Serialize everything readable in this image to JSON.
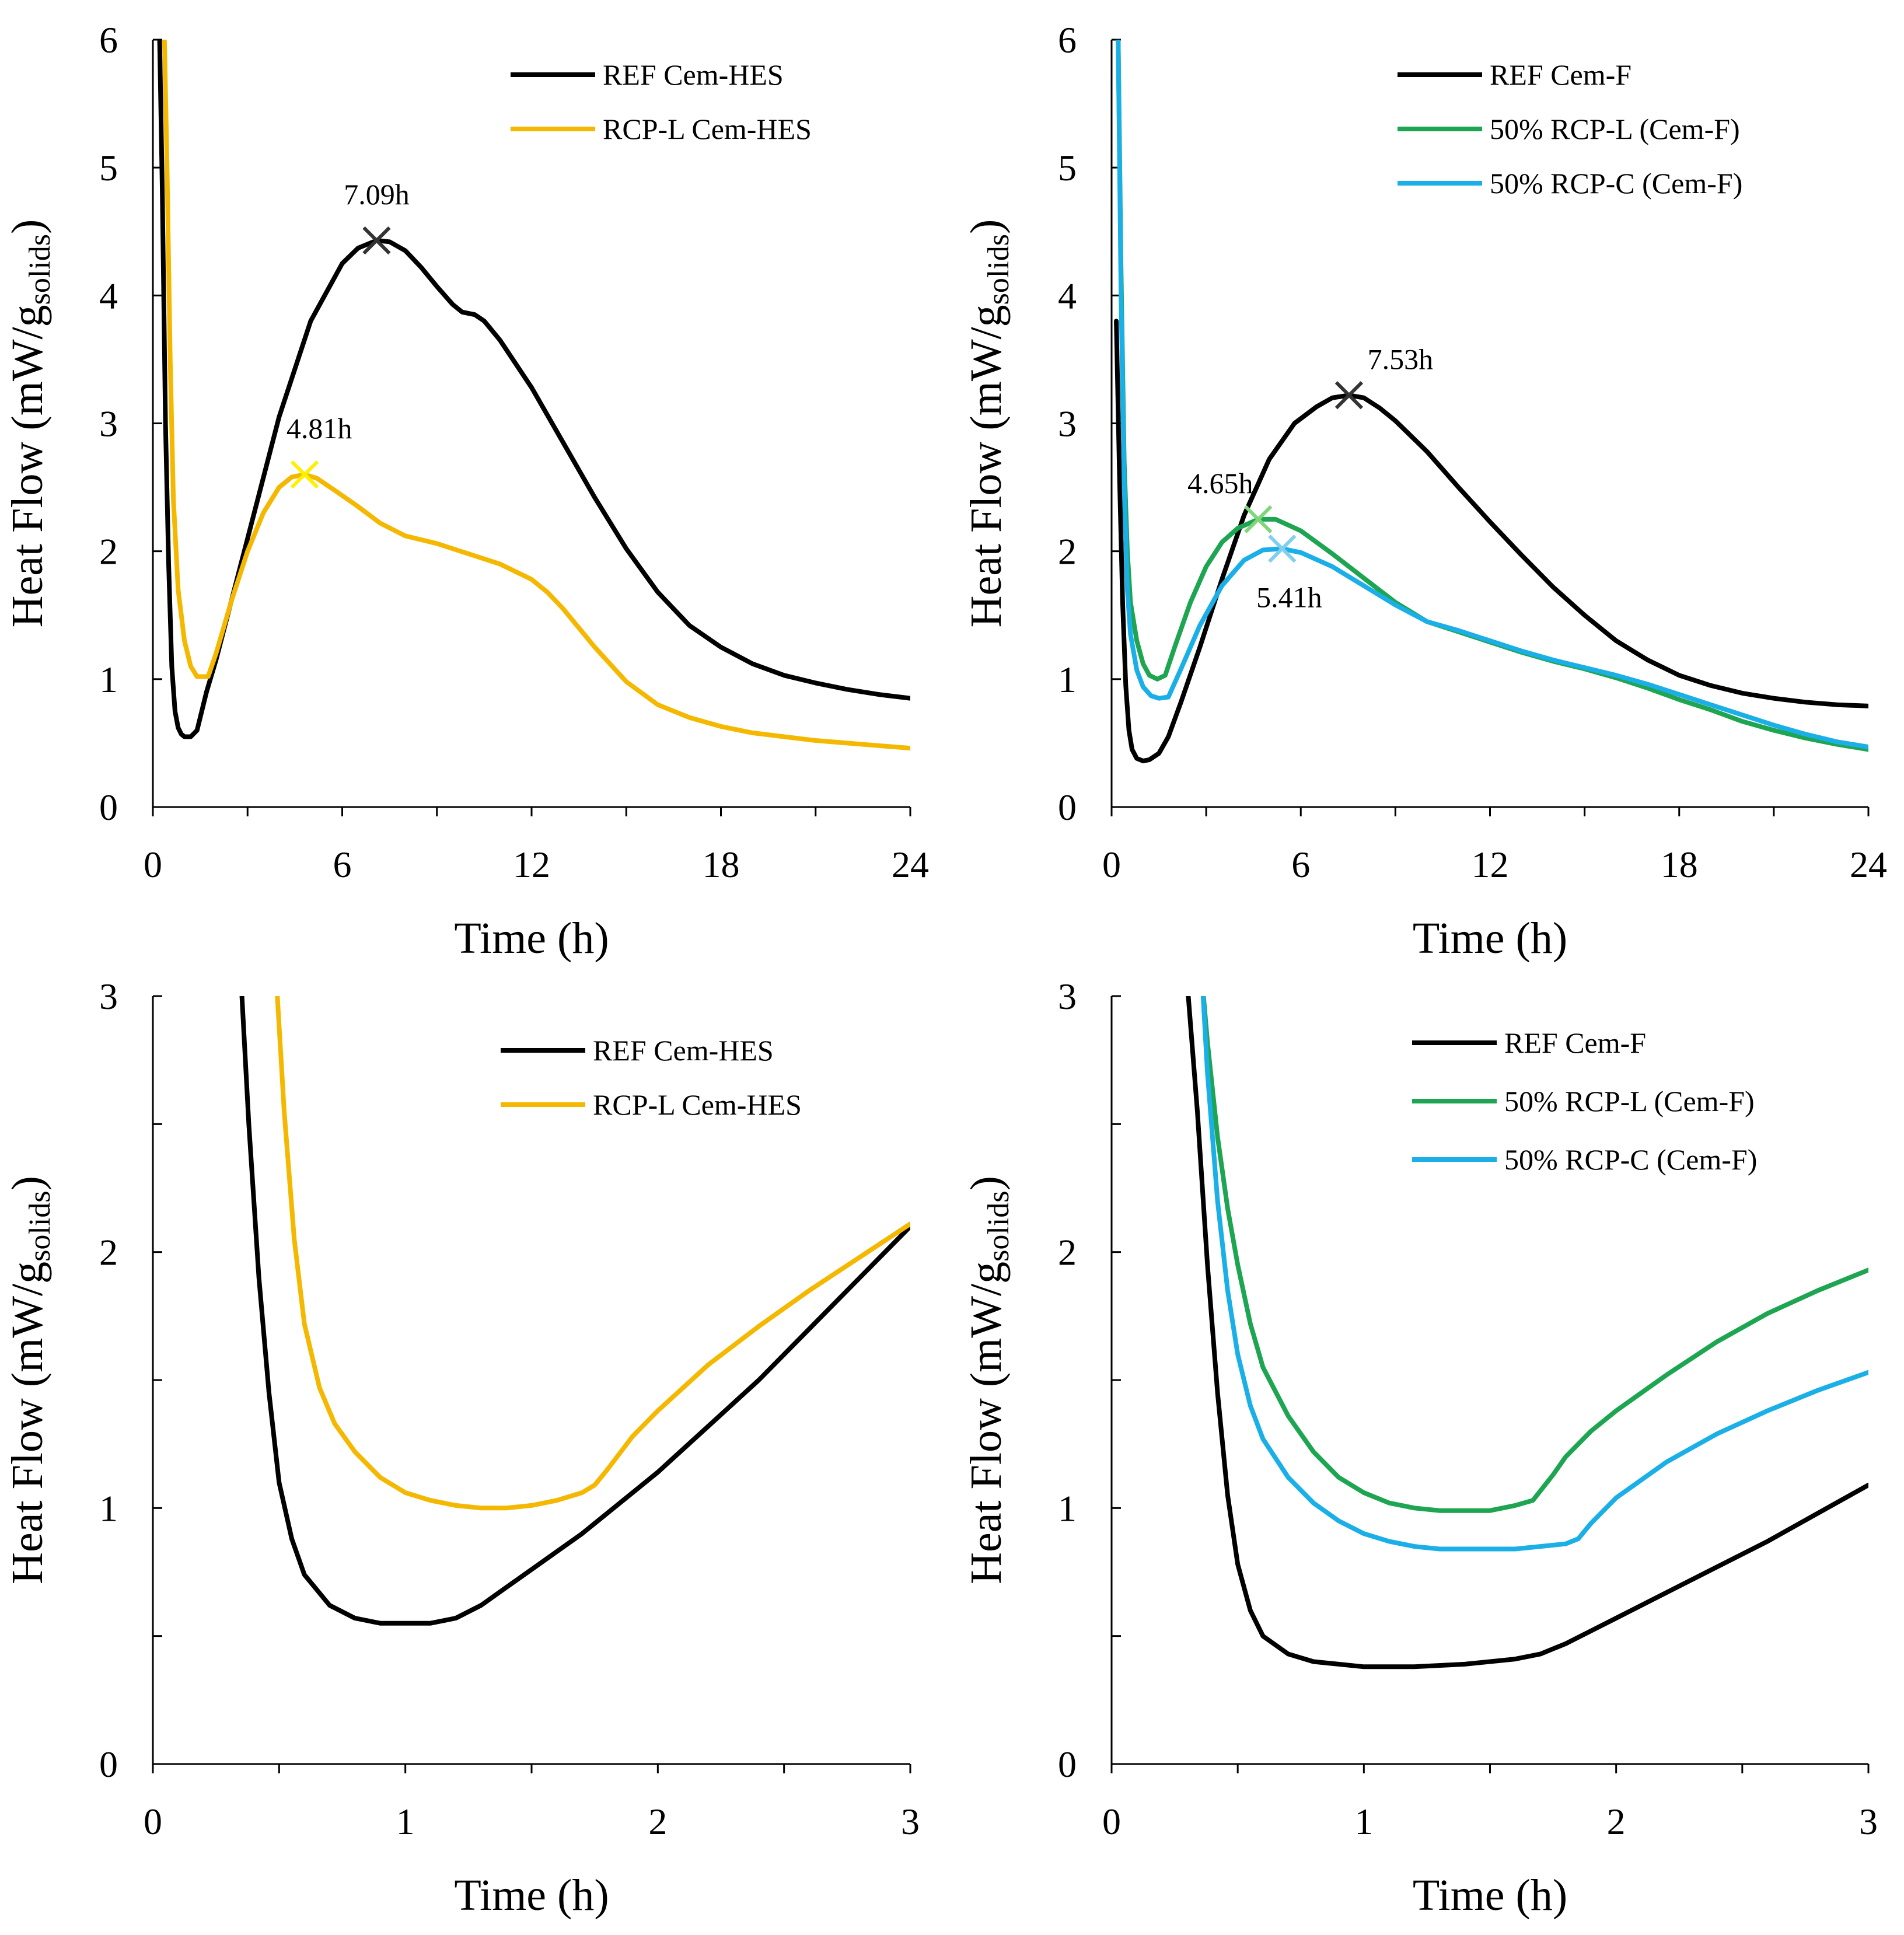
{
  "chart_data": [
    {
      "type": "line",
      "panel": "top-left",
      "title": "",
      "xlabel": "Time (h)",
      "ylabel_main": "Heat Flow (mW/g",
      "ylabel_sub": "solids",
      "ylabel_close": ")",
      "xlim": [
        0,
        24
      ],
      "ylim": [
        0,
        6
      ],
      "xticks": [
        0,
        6,
        12,
        18,
        24
      ],
      "xminor": [
        3,
        9,
        15,
        21
      ],
      "yticks": [
        0,
        1,
        2,
        3,
        4,
        5,
        6
      ],
      "legend_position": "top-right",
      "series": [
        {
          "name": "REF Cem-HES",
          "color": "#000000",
          "x": [
            0.2,
            0.3,
            0.4,
            0.5,
            0.6,
            0.7,
            0.8,
            0.9,
            1.0,
            1.2,
            1.4,
            1.7,
            2,
            3,
            4,
            5,
            6,
            6.5,
            7.09,
            7.5,
            8,
            8.5,
            9,
            9.5,
            9.8,
            10.2,
            10.5,
            11,
            12,
            13,
            14,
            15,
            16,
            17,
            18,
            19,
            20,
            21,
            22,
            23,
            24
          ],
          "y": [
            6.2,
            4.8,
            3.0,
            1.9,
            1.1,
            0.75,
            0.62,
            0.57,
            0.55,
            0.55,
            0.6,
            0.9,
            1.15,
            2.1,
            3.05,
            3.8,
            4.25,
            4.37,
            4.43,
            4.42,
            4.35,
            4.22,
            4.07,
            3.93,
            3.87,
            3.85,
            3.8,
            3.65,
            3.28,
            2.85,
            2.42,
            2.02,
            1.68,
            1.42,
            1.25,
            1.12,
            1.03,
            0.97,
            0.92,
            0.88,
            0.85
          ]
        },
        {
          "name": "RCP-L Cem-HES",
          "color": "#F5B800",
          "x": [
            0.35,
            0.45,
            0.55,
            0.65,
            0.8,
            1.0,
            1.2,
            1.4,
            1.75,
            2,
            2.5,
            3,
            3.5,
            4,
            4.4,
            4.81,
            5.2,
            5.8,
            6.5,
            7.2,
            8,
            9,
            10,
            11,
            12,
            12.5,
            13,
            14,
            15,
            16,
            17,
            18,
            19,
            20,
            21,
            22,
            23,
            24
          ],
          "y": [
            6.2,
            5.0,
            3.5,
            2.4,
            1.7,
            1.3,
            1.1,
            1.02,
            1.02,
            1.2,
            1.62,
            2.0,
            2.3,
            2.5,
            2.58,
            2.6,
            2.57,
            2.47,
            2.35,
            2.22,
            2.12,
            2.06,
            1.98,
            1.9,
            1.78,
            1.68,
            1.55,
            1.25,
            0.98,
            0.8,
            0.7,
            0.63,
            0.58,
            0.55,
            0.52,
            0.5,
            0.48,
            0.46
          ]
        }
      ],
      "markers": [
        {
          "series": 0,
          "x": 7.09,
          "y": 4.43,
          "label": "7.09h",
          "color": "#333333",
          "label_dx": 0,
          "label_dy": -62,
          "anchor": "middle"
        },
        {
          "series": 1,
          "x": 4.81,
          "y": 2.6,
          "label": "4.81h",
          "color": "#FFF000",
          "label_dx": 25,
          "label_dy": -62,
          "anchor": "middle"
        }
      ]
    },
    {
      "type": "line",
      "panel": "top-right",
      "title": "",
      "xlabel": "Time (h)",
      "ylabel_main": "Heat Flow (mW/g",
      "ylabel_sub": "solids",
      "ylabel_close": ")",
      "xlim": [
        0,
        24
      ],
      "ylim": [
        0,
        6
      ],
      "xticks": [
        0,
        6,
        12,
        18,
        24
      ],
      "xminor": [
        3,
        9,
        15,
        21
      ],
      "yticks": [
        0,
        1,
        2,
        3,
        4,
        5,
        6
      ],
      "legend_position": "top-right",
      "series": [
        {
          "name": "REF Cem-F",
          "color": "#000000",
          "x": [
            0.15,
            0.25,
            0.35,
            0.45,
            0.55,
            0.65,
            0.8,
            1.0,
            1.2,
            1.5,
            1.8,
            2.2,
            2.8,
            3.5,
            4.2,
            5,
            5.8,
            6.5,
            7,
            7.53,
            8,
            8.5,
            9,
            10,
            11,
            12,
            13,
            14,
            15,
            16,
            17,
            18,
            19,
            20,
            21,
            22,
            23,
            24
          ],
          "y": [
            3.8,
            2.6,
            1.6,
            0.95,
            0.6,
            0.45,
            0.38,
            0.36,
            0.37,
            0.42,
            0.55,
            0.82,
            1.25,
            1.78,
            2.28,
            2.72,
            3.0,
            3.13,
            3.2,
            3.22,
            3.2,
            3.12,
            3.02,
            2.78,
            2.5,
            2.23,
            1.97,
            1.72,
            1.5,
            1.3,
            1.15,
            1.03,
            0.95,
            0.89,
            0.85,
            0.82,
            0.8,
            0.79
          ]
        },
        {
          "name": "50% RCP-L (Cem-F)",
          "color": "#1DA552",
          "x": [
            0.2,
            0.3,
            0.4,
            0.5,
            0.6,
            0.8,
            1.0,
            1.2,
            1.45,
            1.7,
            2,
            2.5,
            3,
            3.5,
            4,
            4.65,
            5.2,
            6,
            7,
            8,
            9,
            10,
            11,
            12,
            13,
            14,
            15,
            16,
            17,
            18,
            19,
            20,
            21,
            22,
            23,
            24
          ],
          "y": [
            6.2,
            4.2,
            2.7,
            2.0,
            1.6,
            1.3,
            1.12,
            1.03,
            1.0,
            1.03,
            1.25,
            1.6,
            1.88,
            2.07,
            2.18,
            2.25,
            2.25,
            2.16,
            1.98,
            1.79,
            1.6,
            1.45,
            1.37,
            1.29,
            1.21,
            1.14,
            1.08,
            1.01,
            0.93,
            0.84,
            0.76,
            0.67,
            0.6,
            0.54,
            0.49,
            0.45
          ]
        },
        {
          "name": "50% RCP-C (Cem-F)",
          "color": "#1AAFE6",
          "x": [
            0.2,
            0.3,
            0.4,
            0.5,
            0.6,
            0.8,
            1.0,
            1.25,
            1.5,
            1.8,
            2.2,
            2.8,
            3.5,
            4.2,
            4.8,
            5.41,
            6,
            7,
            8,
            9,
            10,
            11,
            12,
            13,
            14,
            15,
            16,
            17,
            18,
            19,
            20,
            21,
            22,
            23,
            24
          ],
          "y": [
            6.2,
            4.0,
            2.5,
            1.7,
            1.35,
            1.07,
            0.94,
            0.87,
            0.85,
            0.86,
            1.08,
            1.42,
            1.73,
            1.93,
            2.01,
            2.02,
            1.99,
            1.88,
            1.73,
            1.58,
            1.45,
            1.38,
            1.3,
            1.22,
            1.15,
            1.09,
            1.03,
            0.96,
            0.88,
            0.8,
            0.72,
            0.64,
            0.57,
            0.51,
            0.47
          ]
        }
      ],
      "markers": [
        {
          "series": 0,
          "x": 7.53,
          "y": 3.22,
          "label": "7.53h",
          "color": "#333333",
          "label_dx": 88,
          "label_dy": -45,
          "anchor": "middle"
        },
        {
          "series": 1,
          "x": 4.65,
          "y": 2.25,
          "label": "4.65h",
          "color": "#7FD67A",
          "label_dx": -65,
          "label_dy": -45,
          "anchor": "middle"
        },
        {
          "series": 2,
          "x": 5.41,
          "y": 2.02,
          "label": "5.41h",
          "color": "#7FCFF0",
          "label_dx": 12,
          "label_dy": 100,
          "anchor": "middle"
        }
      ]
    },
    {
      "type": "line",
      "panel": "bottom-left",
      "title": "",
      "xlabel": "Time (h)",
      "ylabel_main": "Heat Flow (mW/g",
      "ylabel_sub": "solids",
      "ylabel_close": ")",
      "xlim": [
        0,
        3
      ],
      "ylim": [
        0,
        3
      ],
      "xticks": [
        0,
        1,
        2,
        3
      ],
      "xminor": [
        0.5,
        1.5,
        2.5
      ],
      "yticks": [
        0,
        1,
        2,
        3
      ],
      "yminor": [
        0.5,
        1.5,
        2.5
      ],
      "legend_position": "top-right",
      "series": [
        {
          "name": "REF Cem-HES",
          "color": "#000000",
          "x": [
            0.35,
            0.38,
            0.42,
            0.46,
            0.5,
            0.55,
            0.6,
            0.7,
            0.8,
            0.9,
            1.0,
            1.1,
            1.2,
            1.3,
            1.4,
            1.5,
            1.6,
            1.7,
            1.8,
            1.9,
            2.0,
            2.2,
            2.4,
            2.6,
            2.8,
            3.0
          ],
          "y": [
            3.05,
            2.5,
            1.9,
            1.45,
            1.1,
            0.88,
            0.74,
            0.62,
            0.57,
            0.55,
            0.55,
            0.55,
            0.57,
            0.62,
            0.69,
            0.76,
            0.83,
            0.9,
            0.98,
            1.06,
            1.14,
            1.32,
            1.5,
            1.7,
            1.9,
            2.1
          ]
        },
        {
          "name": "RCP-L Cem-HES",
          "color": "#F5B800",
          "x": [
            0.49,
            0.52,
            0.56,
            0.6,
            0.66,
            0.72,
            0.8,
            0.9,
            1.0,
            1.1,
            1.2,
            1.3,
            1.4,
            1.5,
            1.6,
            1.7,
            1.75,
            1.8,
            1.9,
            2.0,
            2.2,
            2.4,
            2.6,
            2.8,
            3.0
          ],
          "y": [
            3.05,
            2.55,
            2.05,
            1.72,
            1.47,
            1.33,
            1.22,
            1.12,
            1.06,
            1.03,
            1.01,
            1.0,
            1.0,
            1.01,
            1.03,
            1.06,
            1.09,
            1.15,
            1.28,
            1.38,
            1.56,
            1.71,
            1.85,
            1.98,
            2.11
          ]
        }
      ],
      "markers": []
    },
    {
      "type": "line",
      "panel": "bottom-right",
      "title": "",
      "xlabel": "Time (h)",
      "ylabel_main": "Heat Flow (mW/g",
      "ylabel_sub": "solids",
      "ylabel_close": ")",
      "xlim": [
        0,
        3
      ],
      "ylim": [
        0,
        3
      ],
      "xticks": [
        0,
        1,
        2,
        3
      ],
      "xminor": [
        0.5,
        1.5,
        2.5
      ],
      "yticks": [
        0,
        1,
        2,
        3
      ],
      "yminor": [
        0.5,
        1.5,
        2.5
      ],
      "legend_position": "top-right",
      "series": [
        {
          "name": "REF Cem-F",
          "color": "#000000",
          "x": [
            0.3,
            0.34,
            0.38,
            0.42,
            0.46,
            0.5,
            0.55,
            0.6,
            0.7,
            0.8,
            0.9,
            1.0,
            1.1,
            1.2,
            1.4,
            1.6,
            1.7,
            1.8,
            1.9,
            2.0,
            2.2,
            2.4,
            2.6,
            2.8,
            3.0
          ],
          "y": [
            3.05,
            2.55,
            1.95,
            1.45,
            1.05,
            0.78,
            0.6,
            0.5,
            0.43,
            0.4,
            0.39,
            0.38,
            0.38,
            0.38,
            0.39,
            0.41,
            0.43,
            0.47,
            0.52,
            0.57,
            0.67,
            0.77,
            0.87,
            0.98,
            1.09
          ]
        },
        {
          "name": "50% RCP-L (Cem-F)",
          "color": "#1DA552",
          "x": [
            0.36,
            0.38,
            0.42,
            0.46,
            0.5,
            0.55,
            0.6,
            0.7,
            0.8,
            0.9,
            1.0,
            1.1,
            1.2,
            1.3,
            1.4,
            1.5,
            1.6,
            1.67,
            1.75,
            1.8,
            1.9,
            2.0,
            2.2,
            2.4,
            2.6,
            2.8,
            3.0
          ],
          "y": [
            3.05,
            2.82,
            2.45,
            2.17,
            1.95,
            1.72,
            1.55,
            1.36,
            1.22,
            1.12,
            1.06,
            1.02,
            1.0,
            0.99,
            0.99,
            0.99,
            1.01,
            1.03,
            1.13,
            1.2,
            1.3,
            1.38,
            1.52,
            1.65,
            1.76,
            1.85,
            1.93
          ]
        },
        {
          "name": "50% RCP-C (Cem-F)",
          "color": "#1AAFE6",
          "x": [
            0.36,
            0.38,
            0.42,
            0.46,
            0.5,
            0.55,
            0.6,
            0.7,
            0.8,
            0.9,
            1.0,
            1.1,
            1.2,
            1.3,
            1.4,
            1.5,
            1.6,
            1.7,
            1.8,
            1.85,
            1.9,
            2.0,
            2.2,
            2.4,
            2.6,
            2.8,
            3.0
          ],
          "y": [
            3.05,
            2.7,
            2.2,
            1.85,
            1.6,
            1.4,
            1.27,
            1.12,
            1.02,
            0.95,
            0.9,
            0.87,
            0.85,
            0.84,
            0.84,
            0.84,
            0.84,
            0.85,
            0.86,
            0.88,
            0.94,
            1.04,
            1.18,
            1.29,
            1.38,
            1.46,
            1.53
          ]
        }
      ],
      "markers": []
    }
  ]
}
